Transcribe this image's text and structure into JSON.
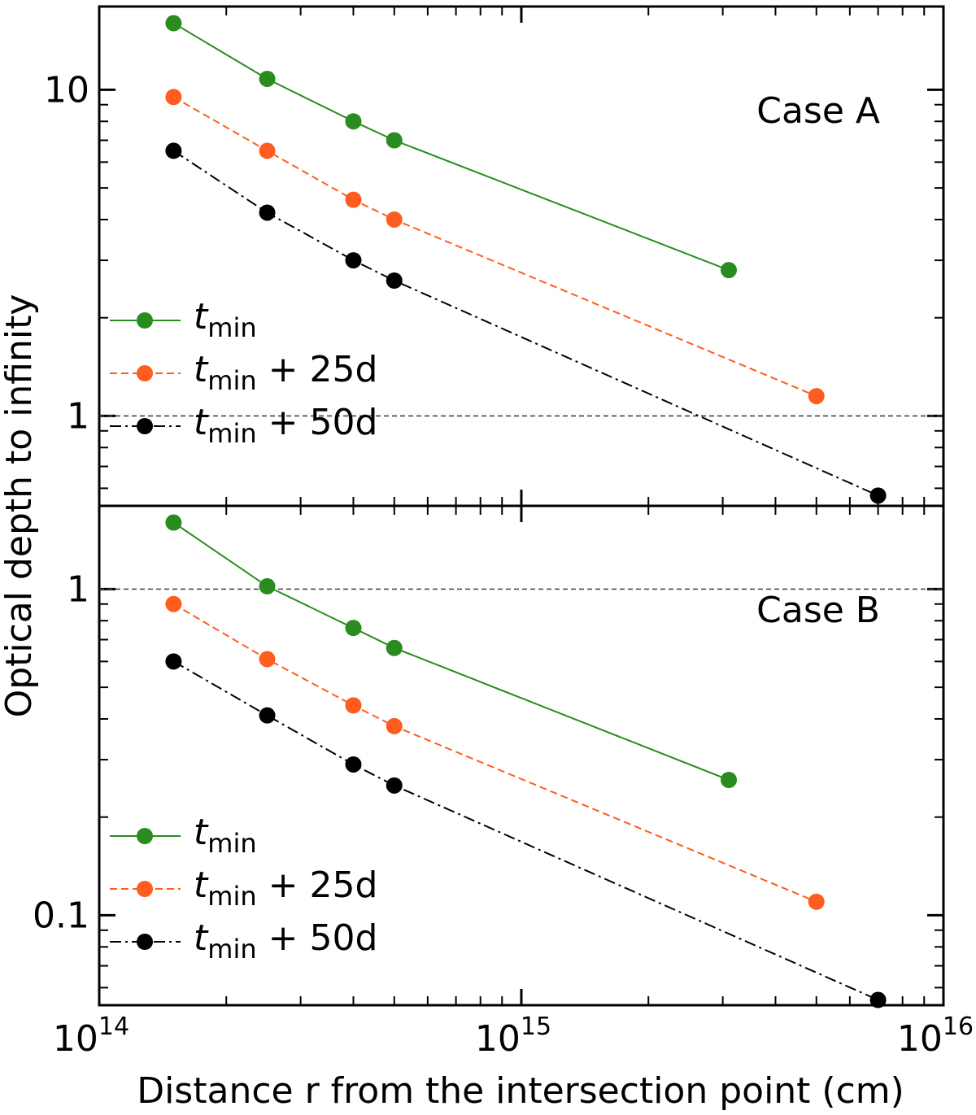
{
  "chart_data": [
    {
      "type": "line",
      "panel": "top",
      "annotation": "Case A",
      "xscale": "log",
      "yscale": "log",
      "xlim": [
        100000000000000.0,
        1e+16
      ],
      "ylim": [
        0.53,
        18
      ],
      "reference_line_y": 1,
      "ytick_labels": [
        "1",
        "10"
      ],
      "x": [
        150000000000000.0,
        250000000000000.0,
        400000000000000.0,
        500000000000000.0,
        3100000000000000.0,
        5000000000000000.0,
        7000000000000000.0
      ],
      "series": [
        {
          "name_main": "t",
          "name_sub": "min",
          "name_suffix": "",
          "color": "#2a8c1f",
          "dash": "solid",
          "x": [
            150000000000000.0,
            250000000000000.0,
            400000000000000.0,
            500000000000000.0,
            3100000000000000.0
          ],
          "values": [
            16.0,
            10.8,
            8.0,
            7.0,
            2.8
          ]
        },
        {
          "name_main": "t",
          "name_sub": "min",
          "name_suffix": " + 25d",
          "color": "#ff5d1f",
          "dash": "dashed",
          "x": [
            150000000000000.0,
            250000000000000.0,
            400000000000000.0,
            500000000000000.0,
            5000000000000000.0
          ],
          "values": [
            9.5,
            6.5,
            4.6,
            4.0,
            1.15
          ]
        },
        {
          "name_main": "t",
          "name_sub": "min",
          "name_suffix": " + 50d",
          "color": "#000000",
          "dash": "dashdot",
          "x": [
            150000000000000.0,
            250000000000000.0,
            400000000000000.0,
            500000000000000.0,
            7000000000000000.0
          ],
          "values": [
            6.5,
            4.2,
            3.0,
            2.6,
            0.57
          ]
        }
      ]
    },
    {
      "type": "line",
      "panel": "bottom",
      "annotation": "Case B",
      "xscale": "log",
      "yscale": "log",
      "xlim": [
        100000000000000.0,
        1e+16
      ],
      "ylim": [
        0.053,
        1.8
      ],
      "reference_line_y": 1,
      "ytick_labels": [
        "0.1",
        "1"
      ],
      "series": [
        {
          "name_main": "t",
          "name_sub": "min",
          "name_suffix": "",
          "color": "#2a8c1f",
          "dash": "solid",
          "x": [
            150000000000000.0,
            250000000000000.0,
            400000000000000.0,
            500000000000000.0,
            3100000000000000.0
          ],
          "values": [
            1.6,
            1.02,
            0.76,
            0.66,
            0.26
          ]
        },
        {
          "name_main": "t",
          "name_sub": "min",
          "name_suffix": " + 25d",
          "color": "#ff5d1f",
          "dash": "dashed",
          "x": [
            150000000000000.0,
            250000000000000.0,
            400000000000000.0,
            500000000000000.0,
            5000000000000000.0
          ],
          "values": [
            0.9,
            0.61,
            0.44,
            0.38,
            0.11
          ]
        },
        {
          "name_main": "t",
          "name_sub": "min",
          "name_suffix": " + 50d",
          "color": "#000000",
          "dash": "dashdot",
          "x": [
            150000000000000.0,
            250000000000000.0,
            400000000000000.0,
            500000000000000.0,
            7000000000000000.0
          ],
          "values": [
            0.6,
            0.41,
            0.29,
            0.25,
            0.055
          ]
        }
      ]
    }
  ],
  "axes": {
    "xlabel": "Distance r from the intersection point (cm)",
    "ylabel": "Optical depth to infinity",
    "xtick_labels": [
      {
        "base": "10",
        "exp": "14",
        "value": 100000000000000.0
      },
      {
        "base": "10",
        "exp": "15",
        "value": 1000000000000000.0
      },
      {
        "base": "10",
        "exp": "16",
        "value": 1e+16
      }
    ]
  }
}
